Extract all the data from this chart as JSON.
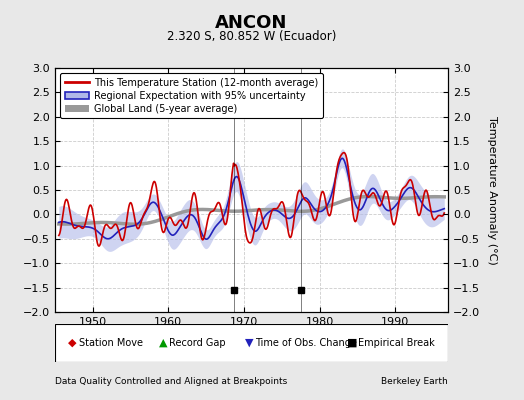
{
  "title": "ANCON",
  "subtitle": "2.320 S, 80.852 W (Ecuador)",
  "ylabel": "Temperature Anomaly (°C)",
  "xlabel_left": "Data Quality Controlled and Aligned at Breakpoints",
  "xlabel_right": "Berkeley Earth",
  "ylim": [
    -2.0,
    3.0
  ],
  "xlim": [
    1945,
    1997
  ],
  "yticks": [
    -2,
    -1.5,
    -1,
    -0.5,
    0,
    0.5,
    1,
    1.5,
    2,
    2.5,
    3
  ],
  "xticks": [
    1950,
    1960,
    1970,
    1980,
    1990
  ],
  "legend_labels": [
    "This Temperature Station (12-month average)",
    "Regional Expectation with 95% uncertainty",
    "Global Land (5-year average)"
  ],
  "empirical_breaks": [
    1968.7,
    1977.5
  ],
  "background_color": "#e8e8e8",
  "plot_bg_color": "#ffffff",
  "red_color": "#cc0000",
  "blue_color": "#2222bb",
  "blue_fill_color": "#b0b8e8",
  "grey_color": "#999999",
  "grid_color": "#cccccc"
}
